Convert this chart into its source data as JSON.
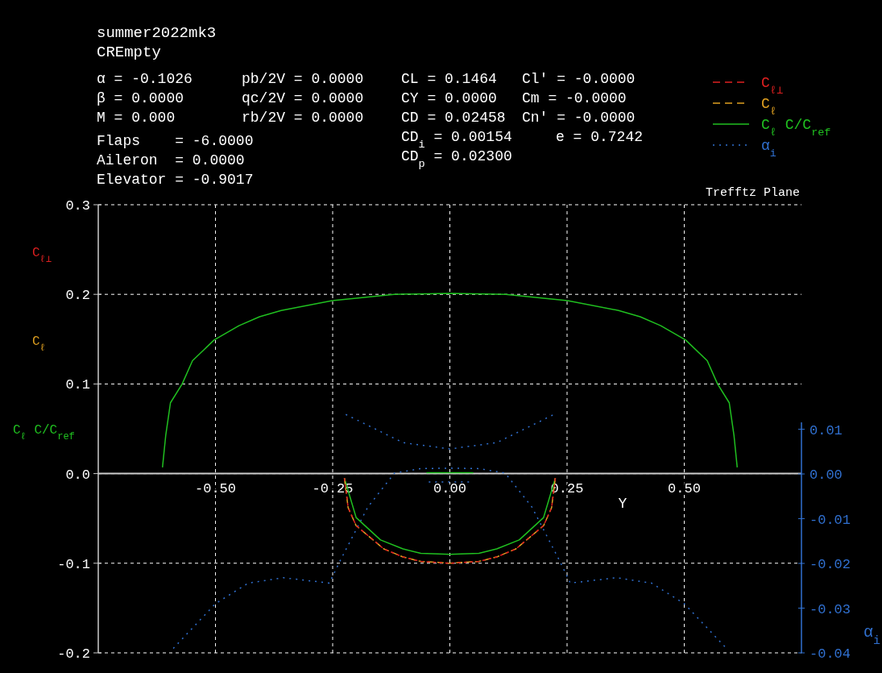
{
  "chart_data": {
    "type": "line",
    "title": "summer2022mk3",
    "subtitle": "CREmpty",
    "xlabel": "Y",
    "y2label": "α$_{i}$",
    "annotations": [
      "α = -0.1026",
      "β = 0.0000",
      "M = 0.000",
      "Flaps    = -6.0000",
      "Aileron  = 0.0000",
      "Elevator = -0.9017",
      "pb/2V = 0.0000",
      "qc/2V = 0.0000",
      "rb/2V = 0.0000",
      "CL = 0.1464",
      "CY = 0.0000",
      "CD = 0.02458",
      "CD$_{i}$ = 0.00154",
      "CD$_{p}$ = 0.02300",
      "Cl' = -0.0000",
      "Cm = -0.0000",
      "Cn' = -0.0000",
      "e = 0.7242",
      "Trefftz Plane"
    ],
    "xlim": [
      -0.75,
      0.75
    ],
    "xticks": [
      {
        "value": -0.5,
        "label": "-0.50"
      },
      {
        "value": -0.25,
        "label": "-0.25"
      },
      {
        "value": 0,
        "label": "0.00"
      },
      {
        "value": 0.25,
        "label": "0.25"
      },
      {
        "value": 0.5,
        "label": "0.50"
      }
    ],
    "ylim": [
      -0.2,
      0.3
    ],
    "yticks": [
      {
        "value": -0.2,
        "label": "-0.2"
      },
      {
        "value": -0.1,
        "label": "-0.1"
      },
      {
        "value": 0,
        "label": "0.0"
      },
      {
        "value": 0.1,
        "label": "0.1"
      },
      {
        "value": 0.2,
        "label": "0.2"
      },
      0.3
    ],
    "y2lim": [
      -0.04,
      0.0602
    ],
    "y2ticks": [
      -0.04,
      -0.03,
      -0.02,
      -0.01,
      {
        "value": 0,
        "label": "0.00"
      },
      0.01
    ],
    "grid": true,
    "legend": "top right",
    "series": [
      {
        "name": "C$_{ℓ⊥}$",
        "color": "#e02020",
        "line_style": "dashed",
        "x": [
          -0.225,
          -0.217,
          -0.2,
          -0.141,
          -0.1,
          -0.062,
          0,
          0.062,
          0.1,
          0.141,
          0.2,
          0.217,
          0.225
        ],
        "values": [
          -0.005,
          -0.038,
          -0.058,
          -0.084,
          -0.093,
          -0.098,
          -0.1,
          -0.098,
          -0.093,
          -0.084,
          -0.058,
          -0.038,
          -0.005
        ]
      },
      {
        "name": "C$_{ℓ}$",
        "color": "#e0a020",
        "line_style": "dashed",
        "x": [
          -0.225,
          -0.217,
          -0.2,
          -0.141,
          -0.1,
          -0.062,
          0,
          0.062,
          0.1,
          0.141,
          0.2,
          0.217,
          0.225
        ],
        "values": [
          -0.005,
          -0.038,
          -0.058,
          -0.084,
          -0.093,
          -0.098,
          -0.1,
          -0.098,
          -0.093,
          -0.084,
          -0.058,
          -0.038,
          -0.005
        ]
      },
      {
        "name": "C$_{ℓ}$ C/C$_{ref}$",
        "color": "#20c020",
        "line_style": "solid",
        "x": [
          -0.613,
          -0.606,
          -0.596,
          -0.571,
          -0.549,
          -0.503,
          -0.45,
          -0.406,
          -0.36,
          -0.251,
          -0.119,
          0,
          0.119,
          0.251,
          0.36,
          0.406,
          0.45,
          0.503,
          0.549,
          0.571,
          0.596,
          0.606,
          0.613,
          null,
          -0.225,
          -0.2,
          -0.148,
          -0.1,
          -0.062,
          0,
          0.062,
          0.1,
          0.148,
          0.2,
          0.225,
          null,
          -0.05,
          0.05
        ],
        "values": [
          0.007,
          0.043,
          0.079,
          0.1,
          0.126,
          0.149,
          0.165,
          0.175,
          0.182,
          0.193,
          0.2,
          0.201,
          0.2,
          0.193,
          0.182,
          0.175,
          0.165,
          0.149,
          0.126,
          0.1,
          0.079,
          0.043,
          0.007,
          null,
          -0.005,
          -0.049,
          -0.074,
          -0.084,
          -0.089,
          -0.09,
          -0.089,
          -0.084,
          -0.074,
          -0.049,
          -0.005,
          null,
          0.001,
          0.001
        ]
      },
      {
        "name": "α$_{i}$",
        "color": "#3070d0",
        "line_style": "dotted",
        "axis": "y2",
        "x": [
          -0.59,
          -0.5,
          -0.43,
          -0.355,
          -0.257,
          -0.235,
          -0.175,
          -0.118,
          -0.062,
          0,
          0.062,
          0.118,
          0.175,
          0.235,
          0.257,
          0.355,
          0.43,
          0.5,
          0.59,
          null,
          -0.222,
          -0.1,
          0,
          0.1,
          0.222,
          null,
          -0.045,
          0.045
        ],
        "values": [
          -0.039,
          -0.029,
          -0.0244,
          -0.0232,
          -0.0244,
          -0.0196,
          -0.0074,
          0.0002,
          0.0012,
          0.0013,
          0.0012,
          0.0002,
          -0.0074,
          -0.0196,
          -0.0244,
          -0.0232,
          -0.0244,
          -0.029,
          -0.039,
          null,
          0.0133,
          0.007,
          0.0056,
          0.007,
          0.0133,
          null,
          -0.0018,
          -0.0018
        ]
      }
    ]
  }
}
